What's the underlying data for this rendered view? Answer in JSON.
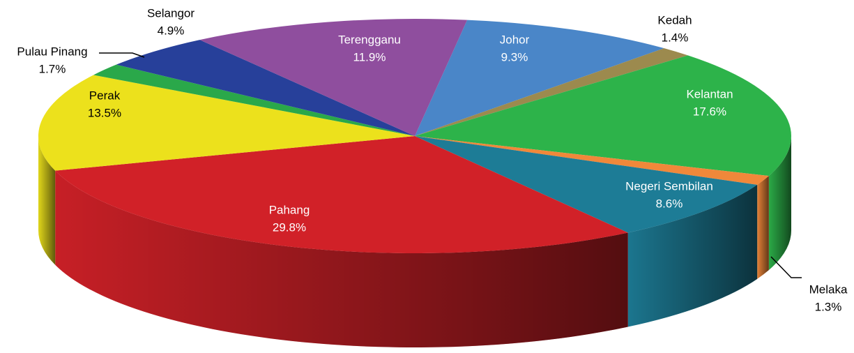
{
  "chart_data": {
    "type": "pie3d",
    "categories": [
      "Johor",
      "Kedah",
      "Kelantan",
      "Melaka",
      "Negeri Sembilan",
      "Pahang",
      "Perak",
      "Pulau Pinang",
      "Selangor",
      "Terengganu"
    ],
    "values": [
      9.3,
      1.4,
      17.6,
      1.3,
      8.6,
      29.8,
      13.5,
      1.7,
      4.9,
      11.9
    ],
    "value_labels": [
      "9.3%",
      "1.4%",
      "17.6%",
      "1.3%",
      "8.6%",
      "29.8%",
      "13.5%",
      "1.7%",
      "4.9%",
      "11.9%"
    ],
    "colors": [
      "#4a86c8",
      "#9c8a4e",
      "#2db34a",
      "#f0883a",
      "#1d7c96",
      "#d12128",
      "#ece11c",
      "#2aa84a",
      "#27409a",
      "#8f4e9e"
    ]
  }
}
